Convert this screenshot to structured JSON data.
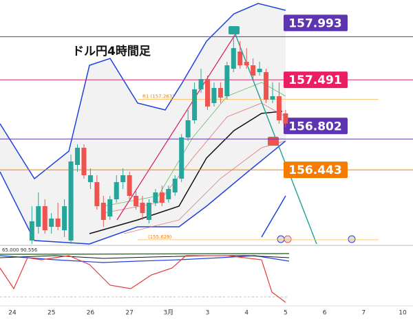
{
  "chart_data": {
    "type": "candlestick",
    "title": "ドル円4時間足",
    "categories": [
      "24",
      null,
      null,
      null,
      null,
      null,
      "25",
      null,
      null,
      null,
      null,
      null,
      "26",
      null,
      null,
      null,
      null,
      null,
      "27",
      null,
      null,
      null,
      null,
      null,
      "3月",
      null,
      null,
      null,
      null,
      null,
      "3",
      null,
      null,
      null,
      null,
      null,
      "4",
      null,
      null,
      null,
      null,
      null,
      "5",
      null,
      null,
      null,
      null,
      null,
      "6",
      null,
      null,
      null,
      null,
      null,
      "7",
      null,
      null,
      null,
      null,
      null,
      "10"
    ],
    "open": [
      null,
      null,
      null,
      155.62,
      155.78,
      156.02,
      155.78,
      155.876,
      155.74,
      155.62,
      156.5,
      156.7,
      156.3,
      156.3,
      156.06,
      155.9,
      156.1,
      156.3,
      156.38,
      156.14,
      156.06,
      155.86,
      156.06,
      156.18,
      156.1,
      156.18,
      156.34,
      156.82,
      157.02,
      157.38,
      157.5,
      157.22,
      157.396,
      157.3,
      157.62,
      157.82,
      157.7,
      157.66,
      157.58,
      157.58,
      157.26,
      157.3,
      157.1,
      null,
      null,
      null,
      null,
      null,
      null,
      null,
      null,
      null,
      null,
      null,
      null,
      null,
      null,
      null,
      null,
      null,
      null
    ],
    "high": [
      null,
      null,
      null,
      156.02,
      156.18,
      156.1,
      155.94,
      156.06,
      156.1,
      156.62,
      156.74,
      156.74,
      156.46,
      156.38,
      156.14,
      156.14,
      156.38,
      156.46,
      156.42,
      156.22,
      156.14,
      156.1,
      156.22,
      156.26,
      156.26,
      156.38,
      156.86,
      157.14,
      157.46,
      157.62,
      157.54,
      157.46,
      157.46,
      157.7,
      157.98,
      157.94,
      157.86,
      157.74,
      157.7,
      157.62,
      157.46,
      157.46,
      157.14,
      null,
      null,
      null,
      null,
      null,
      null,
      null,
      null,
      null,
      null,
      null,
      null,
      null,
      null,
      null,
      null,
      null,
      null
    ],
    "low": [
      null,
      null,
      null,
      155.58,
      155.7,
      155.7,
      155.7,
      155.74,
      155.66,
      155.58,
      156.42,
      156.34,
      156.22,
      155.98,
      155.78,
      155.86,
      156.06,
      156.22,
      156.1,
      155.98,
      155.86,
      155.82,
      156.02,
      156.02,
      156.06,
      156.14,
      156.3,
      156.78,
      156.98,
      157.34,
      157.14,
      157.18,
      157.22,
      157.26,
      157.58,
      157.62,
      157.62,
      157.5,
      157.54,
      157.22,
      157.22,
      156.98,
      156.94,
      null,
      null,
      null,
      null,
      null,
      null,
      null,
      null,
      null,
      null,
      null,
      null,
      null,
      null,
      null,
      null,
      null,
      null
    ],
    "close": [
      null,
      null,
      null,
      155.844,
      156.02,
      155.74,
      155.876,
      155.78,
      156.02,
      156.54,
      156.7,
      156.38,
      156.38,
      156.02,
      155.86,
      156.1,
      156.3,
      156.38,
      156.14,
      156.02,
      155.94,
      156.06,
      156.18,
      156.06,
      156.22,
      156.34,
      156.82,
      157.02,
      157.38,
      157.5,
      157.18,
      157.396,
      157.284,
      157.66,
      157.86,
      157.66,
      157.66,
      157.54,
      157.62,
      157.26,
      157.3,
      157.02,
      156.98,
      null,
      null,
      null,
      null,
      null,
      null,
      null,
      null,
      null,
      null,
      null,
      null,
      null,
      null,
      null,
      null,
      null,
      null
    ],
    "up_color": "#26a69a",
    "down_color": "#ef5350",
    "ylim": [
      155.62,
      158.42
    ],
    "levels": [
      {
        "value": 157.993,
        "color": "#5e35b1"
      },
      {
        "value": 157.491,
        "color": "#e91e63"
      },
      {
        "value": 156.802,
        "color": "#5e35b1"
      },
      {
        "value": 156.443,
        "color": "#f57c00"
      }
    ],
    "pivots": [
      {
        "value": 157.263,
        "label": "R1 (157.263)"
      },
      {
        "value": 155.629,
        "label": "(155.629)"
      }
    ],
    "oscillator_label": "65.000  90.556"
  }
}
